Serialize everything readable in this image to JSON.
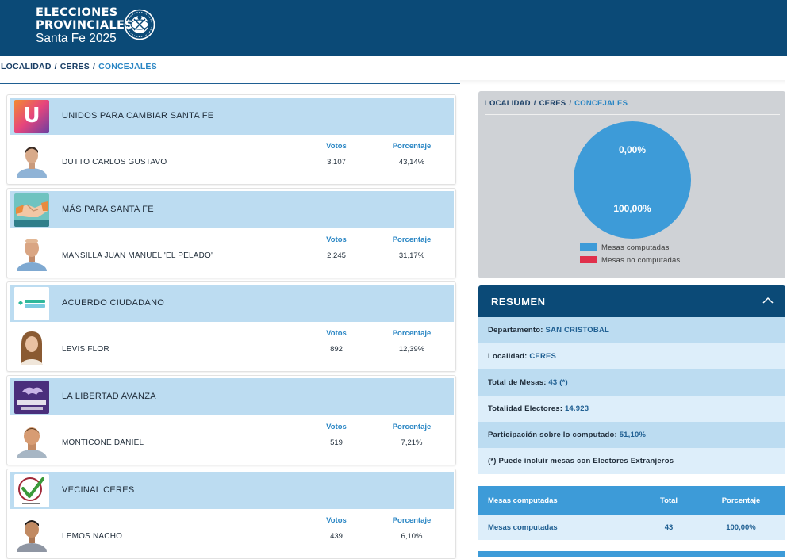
{
  "header": {
    "brand_line1": "ELECCIONES",
    "brand_line2": "PROVINCIALES",
    "brand_line3": "Santa Fe 2025",
    "bg_color": "#0b4a77"
  },
  "breadcrumb": {
    "items": [
      "LOCALIDAD",
      "CERES",
      "CONCEJALES"
    ],
    "separator": "/"
  },
  "results": {
    "votes_label": "Votos",
    "percent_label": "Porcentaje",
    "lists": [
      {
        "party": "UNIDOS PARA CAMBIAR SANTA FE",
        "candidate": "DUTTO CARLOS GUSTAVO",
        "votes": "3.107",
        "percent": "43,14%",
        "logo_icon": "u-letter-icon",
        "logo_letter": "U"
      },
      {
        "party": "MÁS PARA SANTA FE",
        "candidate": "MANSILLA JUAN MANUEL 'EL PELADO'",
        "votes": "2.245",
        "percent": "31,17%",
        "logo_icon": "handshake-icon"
      },
      {
        "party": "ACUERDO CIUDADANO",
        "candidate": "LEVIS FLOR",
        "votes": "892",
        "percent": "12,39%",
        "logo_icon": "acuerdo-ciudadano-icon"
      },
      {
        "party": "LA LIBERTAD AVANZA",
        "candidate": "MONTICONE DANIEL",
        "votes": "519",
        "percent": "7,21%",
        "logo_icon": "lion-icon"
      },
      {
        "party": "VECINAL CERES",
        "candidate": "LEMOS NACHO",
        "votes": "439",
        "percent": "6,10%",
        "logo_icon": "checkmark-icon"
      }
    ]
  },
  "mesas_chart": {
    "breadcrumb": [
      "LOCALIDAD",
      "CERES",
      "CONCEJALES"
    ],
    "top_label": "0,00%",
    "bottom_label": "100,00%",
    "legend_computadas": "Mesas computadas",
    "legend_no_computadas": "Mesas no computadas",
    "color_computadas": "#3d9bd8",
    "color_no_computadas": "#e0304b"
  },
  "chart_data": {
    "type": "pie",
    "categories": [
      "Mesas computadas",
      "Mesas no computadas"
    ],
    "values": [
      100.0,
      0.0
    ],
    "unit": "%"
  },
  "resumen": {
    "title": "RESUMEN",
    "departamento_label": "Departamento:",
    "departamento_value": "SAN CRISTOBAL",
    "localidad_label": "Localidad:",
    "localidad_value": "CERES",
    "total_mesas_label": "Total de Mesas:",
    "total_mesas_value": "43 (*)",
    "electores_label": "Totalidad Electores:",
    "electores_value": "14.923",
    "participacion_label": "Participación sobre lo computado:",
    "participacion_value": "51,10%",
    "note": "(*) Puede incluir mesas con Electores Extranjeros"
  },
  "mesas_table": {
    "headers": [
      "Mesas computadas",
      "Total",
      "Porcentaje"
    ],
    "row": [
      "Mesas computadas",
      "43",
      "100,00%"
    ]
  }
}
